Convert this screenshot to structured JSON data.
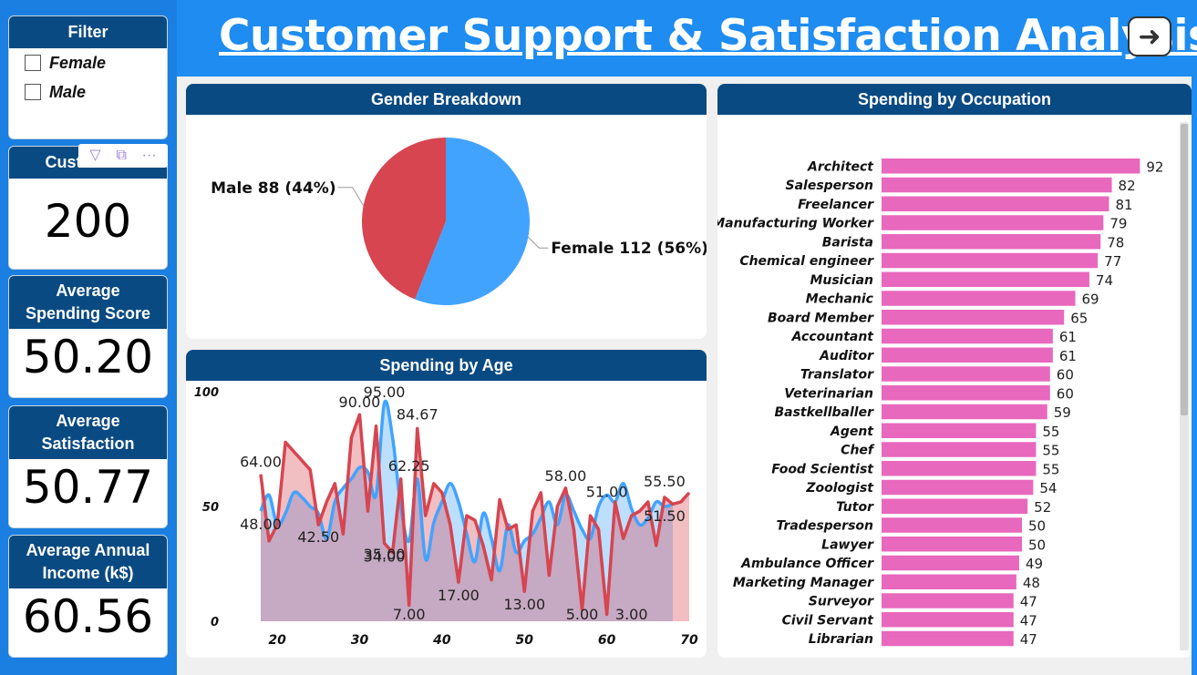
{
  "title": "Customer Support & Satisfaction Analysis",
  "nav_button_icon": "arrow-right-icon",
  "filter": {
    "title": "Filter",
    "options": [
      "Female",
      "Male"
    ]
  },
  "kpis": {
    "customers": {
      "label": "Customers",
      "value": "200"
    },
    "spending": {
      "label_line1": "Average",
      "label_line2": "Spending Score",
      "value": "50.20"
    },
    "satisfaction": {
      "label_line1": "Average",
      "label_line2": "Satisfaction",
      "value": "50.77"
    },
    "income": {
      "label_line1": "Average Annual",
      "label_line2": "Income (k$)",
      "value": "60.56"
    }
  },
  "gender_panel_title": "Gender Breakdown",
  "age_panel_title": "Spending by Age",
  "occupation_panel_title": "Spending by Occupation",
  "colors": {
    "female": "#42a3ff",
    "male": "#d64550",
    "bars": "#e868bd",
    "header": "#0a4a82"
  },
  "chart_data": [
    {
      "type": "pie",
      "title": "Gender Breakdown",
      "slices": [
        {
          "name": "Female",
          "value": 112,
          "label": "Female 112 (56%)"
        },
        {
          "name": "Male",
          "value": 88,
          "label": "Male 88 (44%)"
        }
      ]
    },
    {
      "type": "area",
      "title": "Spending by Age",
      "xlim": [
        18,
        70
      ],
      "ylim": [
        0,
        100
      ],
      "x_ticks": [
        "20",
        "30",
        "40",
        "50",
        "60",
        "70"
      ],
      "y_ticks": [
        "0",
        "50",
        "100"
      ],
      "series": [
        {
          "name": "Spending Score",
          "x": [
            18,
            19,
            20,
            21,
            22,
            23,
            24,
            25,
            26,
            27,
            28,
            29,
            30,
            31,
            32,
            33,
            34,
            35,
            36,
            37,
            38,
            39,
            40,
            41,
            42,
            43,
            44,
            45,
            46,
            47,
            48,
            49,
            50,
            51,
            52,
            53,
            54,
            55,
            56,
            57,
            58,
            59,
            60,
            61,
            62,
            63,
            64,
            65,
            66,
            67,
            68
          ],
          "values": [
            48,
            55,
            42,
            47,
            56,
            54,
            50,
            47,
            36,
            52,
            58,
            62,
            67,
            65,
            55,
            95,
            80,
            50,
            35,
            62,
            27,
            43,
            52,
            60,
            52,
            38,
            26,
            47,
            36,
            22,
            42,
            30,
            35,
            38,
            45,
            52,
            42,
            55,
            48,
            40,
            36,
            50,
            55,
            52,
            60,
            49,
            42,
            45,
            52,
            50,
            51
          ]
        },
        {
          "name": "Satisfaction",
          "x": [
            18,
            19,
            20,
            21,
            22,
            23,
            24,
            25,
            26,
            27,
            28,
            29,
            30,
            31,
            32,
            33,
            34,
            35,
            36,
            37,
            38,
            39,
            40,
            41,
            42,
            43,
            44,
            45,
            46,
            47,
            48,
            49,
            50,
            51,
            52,
            53,
            54,
            55,
            56,
            57,
            58,
            59,
            60,
            61,
            62,
            63,
            64,
            65,
            66,
            67,
            68,
            69,
            70
          ],
          "values": [
            64,
            35,
            42,
            78,
            74,
            70,
            66,
            42,
            52,
            60,
            38,
            80,
            90,
            48,
            85,
            34,
            30,
            62,
            7,
            84,
            46,
            60,
            56,
            42,
            17,
            46,
            44,
            33,
            18,
            53,
            40,
            42,
            13,
            48,
            56,
            20,
            50,
            58,
            40,
            5,
            46,
            40,
            3,
            52,
            36,
            46,
            48,
            52,
            33,
            54,
            51,
            52,
            56
          ]
        }
      ],
      "labels": [
        {
          "x": 18,
          "y": 64,
          "text": "64.00"
        },
        {
          "x": 18,
          "y": 48,
          "text": "48.00"
        },
        {
          "x": 25,
          "y": 42.5,
          "text": "42.50"
        },
        {
          "x": 30,
          "y": 90,
          "text": "90.00"
        },
        {
          "x": 33,
          "y": 95,
          "text": "95.00"
        },
        {
          "x": 33,
          "y": 34,
          "text": "34.00"
        },
        {
          "x": 33,
          "y": 35,
          "text": "35.00"
        },
        {
          "x": 36,
          "y": 62.25,
          "text": "62.25"
        },
        {
          "x": 37,
          "y": 84.67,
          "text": "84.67"
        },
        {
          "x": 36,
          "y": 7,
          "text": "7.00"
        },
        {
          "x": 42,
          "y": 17,
          "text": "17.00"
        },
        {
          "x": 50,
          "y": 13,
          "text": "13.00"
        },
        {
          "x": 55,
          "y": 58,
          "text": "58.00"
        },
        {
          "x": 57,
          "y": 5,
          "text": "5.00"
        },
        {
          "x": 60,
          "y": 51,
          "text": "51.00"
        },
        {
          "x": 63,
          "y": 3,
          "text": "3.00"
        },
        {
          "x": 67,
          "y": 55.5,
          "text": "55.50"
        },
        {
          "x": 67,
          "y": 51.5,
          "text": "51.50"
        }
      ]
    },
    {
      "type": "bar",
      "orientation": "horizontal",
      "title": "Spending by Occupation",
      "xlim": [
        0,
        100
      ],
      "x_ticks": [
        "0",
        "50",
        "100"
      ],
      "categories": [
        "Architect",
        "Salesperson",
        "Freelancer",
        "Manufacturing Worker",
        "Barista",
        "Chemical engineer",
        "Musician",
        "Mechanic",
        "Board Member",
        "Accountant",
        "Auditor",
        "Translator",
        "Veterinarian",
        "Bastkellballer",
        "Agent",
        "Chef",
        "Food Scientist",
        "Zoologist",
        "Tutor",
        "Tradesperson",
        "Lawyer",
        "Ambulance Officer",
        "Marketing Manager",
        "Surveyor",
        "Civil Servant",
        "Librarian"
      ],
      "values": [
        92,
        82,
        81,
        79,
        78,
        77,
        74,
        69,
        65,
        61,
        61,
        60,
        60,
        59,
        55,
        55,
        55,
        54,
        52,
        50,
        50,
        49,
        48,
        47,
        47,
        47
      ]
    }
  ]
}
